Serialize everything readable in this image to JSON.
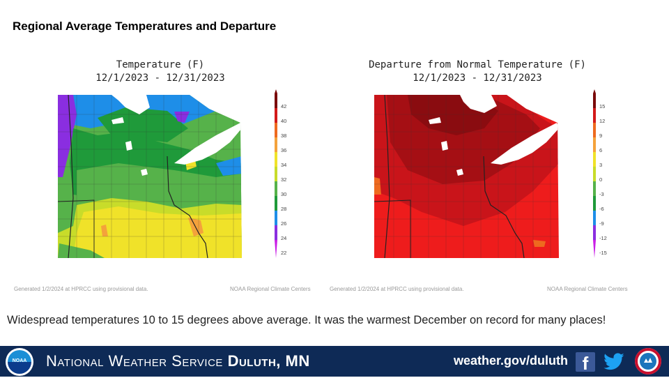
{
  "slide": {
    "title": "Regional Average Temperatures and Departure",
    "caption": "Widespread temperatures 10 to 15 degrees above average. It was the warmest December on record for many places!"
  },
  "maps": [
    {
      "title_line1": "Temperature (F)",
      "title_line2": "12/1/2023 - 12/31/2023",
      "legend_ticks": [
        "42",
        "40",
        "38",
        "36",
        "34",
        "32",
        "30",
        "28",
        "26",
        "24",
        "22"
      ],
      "legend_colors": [
        "#7a0a0a",
        "#d31a1a",
        "#ee6a1f",
        "#f4a23b",
        "#f0e229",
        "#c8dc2a",
        "#56b24a",
        "#1f9a3a",
        "#1e8ee8",
        "#8a2ee0",
        "#c91fe6"
      ],
      "footnote_left": "Generated 1/2/2024 at HPRCC using provisional data.",
      "footnote_right": "NOAA Regional Climate Centers"
    },
    {
      "title_line1": "Departure from Normal Temperature (F)",
      "title_line2": "12/1/2023 - 12/31/2023",
      "legend_ticks": [
        "15",
        "12",
        "9",
        "6",
        "3",
        "0",
        "-3",
        "-6",
        "-9",
        "-12",
        "-15"
      ],
      "legend_colors": [
        "#7a0a0a",
        "#d31a1a",
        "#ee6a1f",
        "#f4a23b",
        "#f0e229",
        "#c8dc2a",
        "#56b24a",
        "#1f9a3a",
        "#1e8ee8",
        "#8a2ee0",
        "#c91fe6"
      ],
      "footnote_left": "Generated 1/2/2024 at HPRCC using provisional data.",
      "footnote_right": "NOAA Regional Climate Centers"
    }
  ],
  "banner": {
    "office_prefix": "National Weather Service",
    "office_name": "Duluth, MN",
    "url": "weather.gov/duluth",
    "noaa_label": "NOAA",
    "facebook_glyph": "f"
  }
}
